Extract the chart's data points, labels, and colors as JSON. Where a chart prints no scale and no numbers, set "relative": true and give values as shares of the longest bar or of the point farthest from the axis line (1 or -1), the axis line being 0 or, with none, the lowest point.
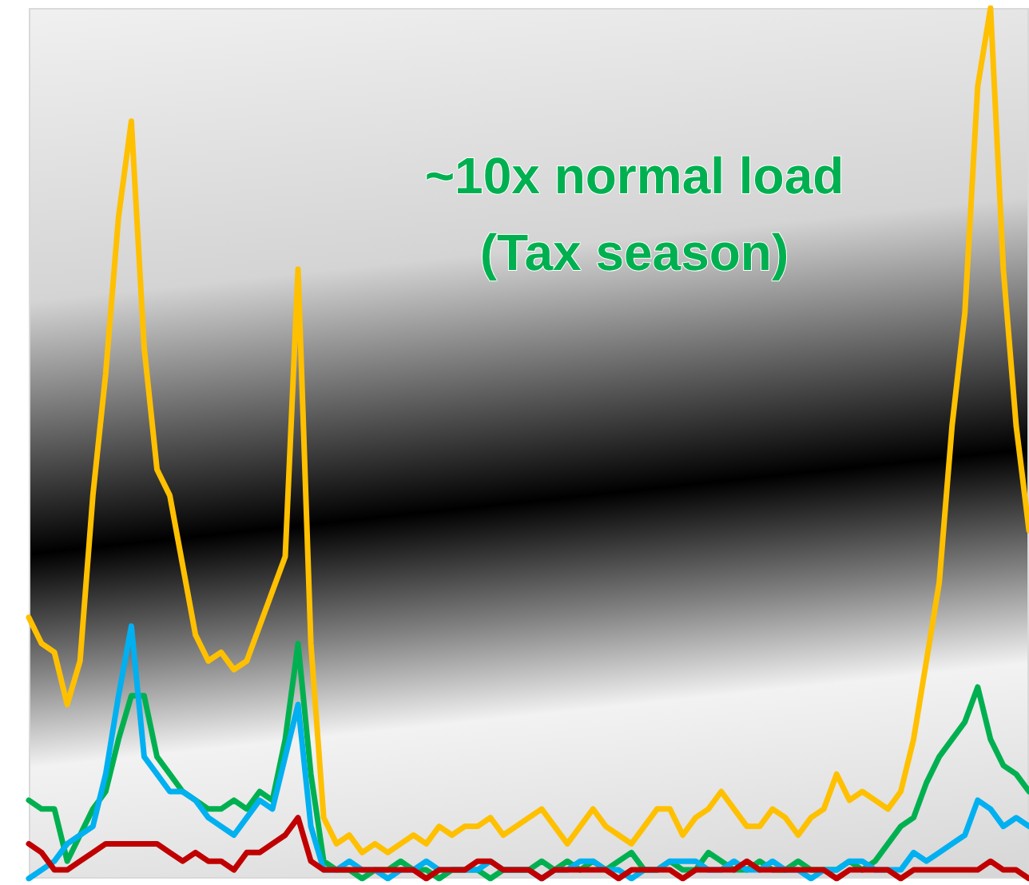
{
  "chart_data": {
    "type": "line",
    "relative": true,
    "tick_labels": false,
    "line_style": "solid",
    "annotations": [
      "~10x normal load",
      "(Tax season)"
    ],
    "categories": [
      null,
      null,
      null,
      null,
      null,
      null,
      null,
      null,
      null,
      null,
      null,
      null,
      null,
      null,
      null,
      null,
      null,
      null,
      null,
      null,
      null,
      null,
      null,
      null,
      null,
      null,
      null,
      null,
      null,
      null,
      null,
      null,
      null,
      null,
      null,
      null,
      null,
      null,
      null,
      null,
      null,
      null,
      null,
      null,
      null,
      null,
      null,
      null,
      null,
      null,
      null,
      null,
      null,
      null,
      null,
      null,
      null,
      null,
      null,
      null,
      null,
      null,
      null,
      null,
      null,
      null,
      null,
      null,
      null,
      null,
      null,
      null,
      null,
      null,
      null,
      null,
      null,
      null,
      null
    ],
    "series": [
      {
        "color": "#ffc000",
        "values": [
          0.3,
          0.27,
          0.26,
          0.2,
          0.25,
          0.44,
          0.58,
          0.76,
          0.87,
          0.61,
          0.47,
          0.44,
          0.36,
          0.28,
          0.25,
          0.26,
          0.24,
          0.25,
          0.29,
          0.33,
          0.37,
          0.7,
          0.27,
          0.07,
          0.04,
          0.05,
          0.03,
          0.04,
          0.03,
          0.04,
          0.05,
          0.04,
          0.06,
          0.05,
          0.06,
          0.06,
          0.07,
          0.05,
          0.06,
          0.07,
          0.08,
          0.06,
          0.04,
          0.06,
          0.08,
          0.06,
          0.05,
          0.04,
          0.06,
          0.08,
          0.08,
          0.05,
          0.07,
          0.08,
          0.1,
          0.08,
          0.06,
          0.06,
          0.08,
          0.07,
          0.05,
          0.07,
          0.08,
          0.12,
          0.09,
          0.1,
          0.09,
          0.08,
          0.1,
          0.16,
          0.25,
          0.34,
          0.52,
          0.65,
          0.91,
          1.0,
          0.7,
          0.52,
          0.4
        ]
      },
      {
        "color": "#00b050",
        "values": [
          0.09,
          0.08,
          0.08,
          0.02,
          0.05,
          0.08,
          0.1,
          0.16,
          0.21,
          0.21,
          0.14,
          0.12,
          0.1,
          0.09,
          0.08,
          0.08,
          0.09,
          0.08,
          0.1,
          0.09,
          0.16,
          0.27,
          0.12,
          0.02,
          0.01,
          0.01,
          0.0,
          0.01,
          0.01,
          0.02,
          0.01,
          0.01,
          0.0,
          0.01,
          0.01,
          0.01,
          0.0,
          0.01,
          0.01,
          0.01,
          0.02,
          0.01,
          0.02,
          0.01,
          0.02,
          0.01,
          0.02,
          0.03,
          0.01,
          0.01,
          0.02,
          0.01,
          0.01,
          0.03,
          0.02,
          0.01,
          0.01,
          0.02,
          0.01,
          0.01,
          0.02,
          0.01,
          0.01,
          0.01,
          0.02,
          0.01,
          0.02,
          0.04,
          0.06,
          0.07,
          0.11,
          0.14,
          0.16,
          0.18,
          0.22,
          0.16,
          0.13,
          0.12,
          0.1
        ]
      },
      {
        "color": "#00b0f0",
        "values": [
          0.0,
          0.01,
          0.02,
          0.04,
          0.05,
          0.06,
          0.12,
          0.21,
          0.29,
          0.14,
          0.12,
          0.1,
          0.1,
          0.09,
          0.07,
          0.06,
          0.05,
          0.07,
          0.09,
          0.08,
          0.14,
          0.2,
          0.06,
          0.01,
          0.01,
          0.02,
          0.01,
          0.01,
          0.0,
          0.01,
          0.01,
          0.02,
          0.01,
          0.01,
          0.01,
          0.01,
          0.02,
          0.01,
          0.01,
          0.01,
          0.0,
          0.01,
          0.01,
          0.02,
          0.02,
          0.01,
          0.01,
          0.0,
          0.01,
          0.01,
          0.02,
          0.02,
          0.02,
          0.01,
          0.01,
          0.02,
          0.01,
          0.01,
          0.02,
          0.01,
          0.01,
          0.0,
          0.01,
          0.01,
          0.02,
          0.02,
          0.01,
          0.01,
          0.01,
          0.03,
          0.02,
          0.03,
          0.04,
          0.05,
          0.09,
          0.08,
          0.06,
          0.07,
          0.06
        ]
      },
      {
        "color": "#c00000",
        "values": [
          0.04,
          0.03,
          0.01,
          0.01,
          0.02,
          0.03,
          0.04,
          0.04,
          0.04,
          0.04,
          0.04,
          0.03,
          0.02,
          0.03,
          0.02,
          0.02,
          0.01,
          0.03,
          0.03,
          0.04,
          0.05,
          0.07,
          0.02,
          0.01,
          0.01,
          0.01,
          0.01,
          0.01,
          0.01,
          0.01,
          0.01,
          0.0,
          0.01,
          0.01,
          0.01,
          0.02,
          0.02,
          0.01,
          0.01,
          0.01,
          0.0,
          0.01,
          0.01,
          0.01,
          0.01,
          0.01,
          0.0,
          0.01,
          0.01,
          0.01,
          0.01,
          0.0,
          0.01,
          0.01,
          0.01,
          0.01,
          0.02,
          0.01,
          0.01,
          0.01,
          0.01,
          0.01,
          0.01,
          0.0,
          0.01,
          0.01,
          0.01,
          0.01,
          0.0,
          0.01,
          0.01,
          0.01,
          0.01,
          0.01,
          0.01,
          0.02,
          0.01,
          0.01,
          0.0
        ]
      }
    ]
  }
}
